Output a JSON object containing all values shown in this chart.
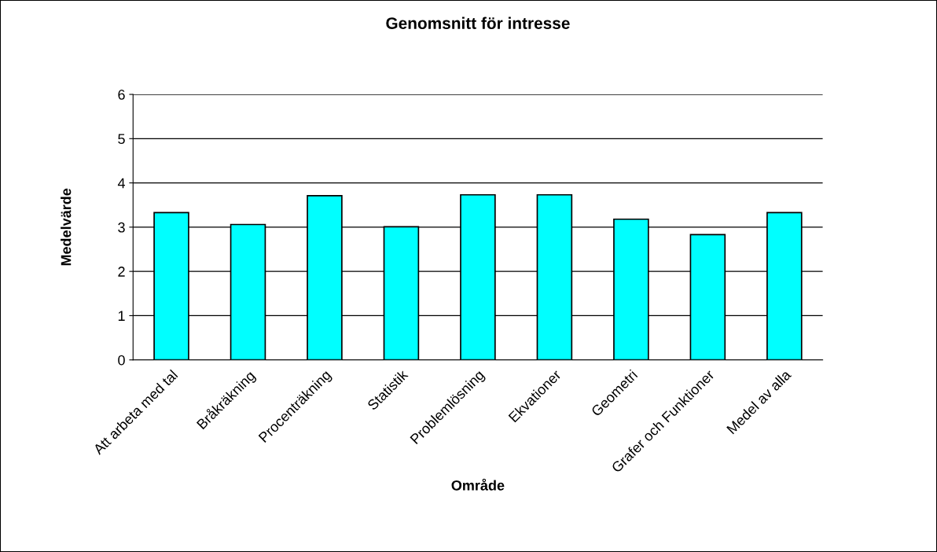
{
  "chart_data": {
    "type": "bar",
    "title": "Genomsnitt för intresse",
    "xlabel": "Område",
    "ylabel": "Medelvärde",
    "categories": [
      "Att arbeta med tal",
      "Bråkräkning",
      "Procenträkning",
      "Statistik",
      "Problemlösning",
      "Ekvationer",
      "Geometri",
      "Grafer och Funktioner",
      "Medel av alla"
    ],
    "values": [
      3.33,
      3.06,
      3.71,
      3.01,
      3.73,
      3.73,
      3.18,
      2.83,
      3.33
    ],
    "color": "#00ffff",
    "ylim": [
      0,
      6
    ],
    "yticks": [
      0,
      1,
      2,
      3,
      4,
      5,
      6
    ],
    "grid": "y",
    "legend": false
  }
}
